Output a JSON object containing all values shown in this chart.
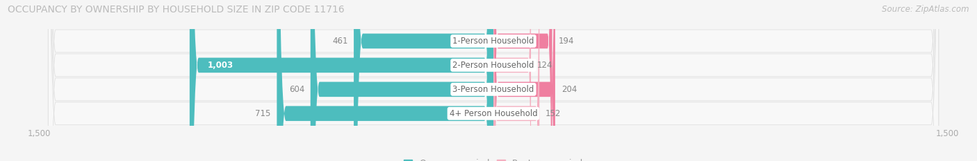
{
  "title": "OCCUPANCY BY OWNERSHIP BY HOUSEHOLD SIZE IN ZIP CODE 11716",
  "source": "Source: ZipAtlas.com",
  "categories": [
    "1-Person Household",
    "2-Person Household",
    "3-Person Household",
    "4+ Person Household"
  ],
  "owner_values": [
    461,
    1003,
    604,
    715
  ],
  "renter_values": [
    194,
    124,
    204,
    152
  ],
  "owner_color": "#4dbdbe",
  "renter_colors": [
    "#ef7fa0",
    "#f4afc0",
    "#ef7fa0",
    "#f4afc0"
  ],
  "row_bg_color_odd": "#f0f0f0",
  "row_bg_color_even": "#e8e8e8",
  "label_fontsize": 8.5,
  "tick_fontsize": 8.5,
  "title_fontsize": 10,
  "source_fontsize": 8.5,
  "legend_fontsize": 9,
  "xlim": 1500,
  "bar_height": 0.62
}
